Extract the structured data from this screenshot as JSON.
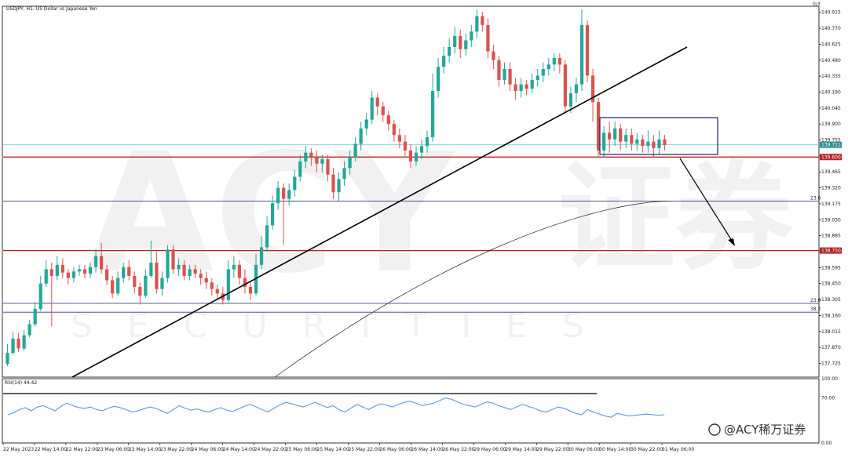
{
  "colors": {
    "background": "#ffffff",
    "bull": "#26a69a",
    "bear": "#d9534f",
    "resistance_line": "#b22222",
    "fib_line": "#3b3b7a",
    "bid_line": "#7fc8c8",
    "trendline": "#000000",
    "moving_average": "#222222",
    "rsi_line": "#4a8fd6",
    "box": "#1f1f5f",
    "grid_text": "#222222"
  },
  "header": {
    "title": "USDJPY, H1:  US Dollar vs Japanese Yen",
    "corner_badge": "0/3"
  },
  "watermark": {
    "brand": "ACY",
    "cn": "证券",
    "sub": "SECURITIES"
  },
  "footer": {
    "brand_text": "@ACY稀万证券"
  },
  "chart_data": [
    {
      "type": "candlestick",
      "symbol": "USDJPY",
      "timeframe": "H1",
      "title": "USDJPY, H1:  US Dollar vs Japanese Yen",
      "ylim": [
        137.6,
        140.97
      ],
      "y_ticks": [
        "140.915",
        "140.770",
        "140.625",
        "140.480",
        "140.335",
        "140.190",
        "140.045",
        "139.900",
        "139.755",
        "139.610",
        "139.465",
        "139.320",
        "139.175",
        "139.030",
        "138.885",
        "138.740",
        "138.595",
        "138.450",
        "138.305",
        "138.160",
        "138.015",
        "137.870",
        "137.725"
      ],
      "x_ticks": [
        "22 May 2023",
        "22 May 14:00",
        "22 May 22:00",
        "23 May 06:00",
        "23 May 14:00",
        "23 May 22:00",
        "24 May 06:00",
        "24 May 14:00",
        "24 May 22:00",
        "25 May 06:00",
        "25 May 14:00",
        "25 May 22:00",
        "26 May 06:00",
        "26 May 14:00",
        "26 May 22:00",
        "29 May 06:00",
        "29 May 14:00",
        "29 May 22:00",
        "30 May 06:00",
        "30 May 14:00",
        "30 May 22:00",
        "31 May 06:00"
      ],
      "current_price": {
        "value": 139.711,
        "label": "139.711"
      },
      "horizontal_levels": [
        {
          "value": 139.6,
          "label": "139.600",
          "kind": "resistance"
        },
        {
          "value": 138.75,
          "label": "138.750",
          "kind": "resistance"
        }
      ],
      "fib_levels": [
        {
          "value": 139.2,
          "label": "23.6"
        },
        {
          "value": 138.27,
          "label": "23.6"
        },
        {
          "value": 138.19,
          "label": "38.2"
        }
      ],
      "candles": [
        [
          137.72,
          137.82,
          137.7,
          137.9
        ],
        [
          137.82,
          137.95,
          137.8,
          138.01
        ],
        [
          137.95,
          137.86,
          137.83,
          138.0
        ],
        [
          137.86,
          137.98,
          137.84,
          138.03
        ],
        [
          137.98,
          138.08,
          137.96,
          138.12
        ],
        [
          138.08,
          138.22,
          138.06,
          138.28
        ],
        [
          138.22,
          138.45,
          138.2,
          138.52
        ],
        [
          138.45,
          138.58,
          138.42,
          138.66
        ],
        [
          138.58,
          138.52,
          138.06,
          138.64
        ],
        [
          138.52,
          138.62,
          138.48,
          138.7
        ],
        [
          138.62,
          138.55,
          138.5,
          138.68
        ],
        [
          138.55,
          138.5,
          138.44,
          138.58
        ],
        [
          138.5,
          138.56,
          138.46,
          138.6
        ],
        [
          138.56,
          138.58,
          138.52,
          138.62
        ],
        [
          138.58,
          138.54,
          138.5,
          138.62
        ],
        [
          138.54,
          138.6,
          138.5,
          138.64
        ],
        [
          138.6,
          138.7,
          138.55,
          138.76
        ],
        [
          138.7,
          138.58,
          138.54,
          138.82
        ],
        [
          138.58,
          138.48,
          138.44,
          138.62
        ],
        [
          138.48,
          138.36,
          138.32,
          138.52
        ],
        [
          138.36,
          138.5,
          138.34,
          138.56
        ],
        [
          138.5,
          138.6,
          138.46,
          138.64
        ],
        [
          138.6,
          138.52,
          138.48,
          138.66
        ],
        [
          138.52,
          138.42,
          138.36,
          138.56
        ],
        [
          138.42,
          138.34,
          138.26,
          138.46
        ],
        [
          138.34,
          138.52,
          138.32,
          138.58
        ],
        [
          138.52,
          138.64,
          138.5,
          138.84
        ],
        [
          138.64,
          138.4,
          138.36,
          138.74
        ],
        [
          138.4,
          138.5,
          138.34,
          138.56
        ],
        [
          138.5,
          138.76,
          138.46,
          138.8
        ],
        [
          138.76,
          138.58,
          138.54,
          138.8
        ],
        [
          138.58,
          138.62,
          138.52,
          138.68
        ],
        [
          138.62,
          138.52,
          138.48,
          138.66
        ],
        [
          138.52,
          138.58,
          138.48,
          138.62
        ],
        [
          138.58,
          138.54,
          138.5,
          138.62
        ],
        [
          138.54,
          138.5,
          138.44,
          138.58
        ],
        [
          138.5,
          138.46,
          138.4,
          138.56
        ],
        [
          138.46,
          138.4,
          138.34,
          138.5
        ],
        [
          138.4,
          138.36,
          138.3,
          138.44
        ],
        [
          138.36,
          138.3,
          138.26,
          138.42
        ],
        [
          138.3,
          138.58,
          138.28,
          138.66
        ],
        [
          138.58,
          138.62,
          138.5,
          138.7
        ],
        [
          138.62,
          138.5,
          138.44,
          138.66
        ],
        [
          138.5,
          138.42,
          138.36,
          138.58
        ],
        [
          138.42,
          138.36,
          138.3,
          138.46
        ],
        [
          138.36,
          138.62,
          138.34,
          138.72
        ],
        [
          138.62,
          138.78,
          138.58,
          138.88
        ],
        [
          138.78,
          138.98,
          138.74,
          139.06
        ],
        [
          138.98,
          139.18,
          138.94,
          139.25
        ],
        [
          139.18,
          139.32,
          139.12,
          139.38
        ],
        [
          139.32,
          139.22,
          138.8,
          139.36
        ],
        [
          139.22,
          139.3,
          139.16,
          139.36
        ],
        [
          139.3,
          139.42,
          139.24,
          139.48
        ],
        [
          139.42,
          139.56,
          139.38,
          139.62
        ],
        [
          139.56,
          139.64,
          139.5,
          139.7
        ],
        [
          139.64,
          139.6,
          139.52,
          139.68
        ],
        [
          139.6,
          139.54,
          139.46,
          139.66
        ],
        [
          139.54,
          139.58,
          139.46,
          139.62
        ],
        [
          139.58,
          139.44,
          139.38,
          139.62
        ],
        [
          139.44,
          139.28,
          139.22,
          139.5
        ],
        [
          139.28,
          139.4,
          139.2,
          139.46
        ],
        [
          139.4,
          139.5,
          139.34,
          139.56
        ],
        [
          139.5,
          139.6,
          139.44,
          139.66
        ],
        [
          139.6,
          139.72,
          139.56,
          139.78
        ],
        [
          139.72,
          139.86,
          139.66,
          139.92
        ],
        [
          139.86,
          139.94,
          139.8,
          140.0
        ],
        [
          139.94,
          140.14,
          139.9,
          140.2
        ],
        [
          140.14,
          140.06,
          139.98,
          140.18
        ],
        [
          140.06,
          139.98,
          139.92,
          140.1
        ],
        [
          139.98,
          139.9,
          139.84,
          140.02
        ],
        [
          139.9,
          139.8,
          139.74,
          139.94
        ],
        [
          139.8,
          139.74,
          139.68,
          139.86
        ],
        [
          139.74,
          139.66,
          139.6,
          139.8
        ],
        [
          139.66,
          139.56,
          139.5,
          139.72
        ],
        [
          139.56,
          139.64,
          139.52,
          139.7
        ],
        [
          139.64,
          139.7,
          139.58,
          139.76
        ],
        [
          139.7,
          139.78,
          139.64,
          139.84
        ],
        [
          139.78,
          140.2,
          139.74,
          140.36
        ],
        [
          140.2,
          140.42,
          140.14,
          140.5
        ],
        [
          140.42,
          140.52,
          140.36,
          140.6
        ],
        [
          140.52,
          140.6,
          140.46,
          140.68
        ],
        [
          140.6,
          140.7,
          140.54,
          140.78
        ],
        [
          140.7,
          140.58,
          140.5,
          140.76
        ],
        [
          140.58,
          140.66,
          140.52,
          140.72
        ],
        [
          140.66,
          140.74,
          140.6,
          140.8
        ],
        [
          140.74,
          140.88,
          140.68,
          140.94
        ],
        [
          140.88,
          140.8,
          140.74,
          140.92
        ],
        [
          140.8,
          140.56,
          140.5,
          140.86
        ],
        [
          140.56,
          140.48,
          140.4,
          140.62
        ],
        [
          140.48,
          140.3,
          140.24,
          140.52
        ],
        [
          140.3,
          140.4,
          140.26,
          140.46
        ],
        [
          140.4,
          140.26,
          140.2,
          140.46
        ],
        [
          140.26,
          140.2,
          140.12,
          140.32
        ],
        [
          140.2,
          140.26,
          140.14,
          140.32
        ],
        [
          140.26,
          140.22,
          140.16,
          140.3
        ],
        [
          140.22,
          140.3,
          140.18,
          140.36
        ],
        [
          140.3,
          140.34,
          140.24,
          140.4
        ],
        [
          140.34,
          140.4,
          140.28,
          140.46
        ],
        [
          140.4,
          140.44,
          140.34,
          140.5
        ],
        [
          140.44,
          140.5,
          140.38,
          140.54
        ],
        [
          140.5,
          140.44,
          140.36,
          140.54
        ],
        [
          140.44,
          140.06,
          140.0,
          140.48
        ],
        [
          140.06,
          140.18,
          140.0,
          140.24
        ],
        [
          140.18,
          140.26,
          140.1,
          140.32
        ],
        [
          140.26,
          140.8,
          140.2,
          140.94
        ],
        [
          140.8,
          140.34,
          140.28,
          140.84
        ],
        [
          140.34,
          140.1,
          139.92,
          140.4
        ],
        [
          140.1,
          139.66,
          139.6,
          140.14
        ],
        [
          139.66,
          139.82,
          139.6,
          139.88
        ],
        [
          139.82,
          139.76,
          139.64,
          139.92
        ],
        [
          139.76,
          139.86,
          139.7,
          139.92
        ],
        [
          139.86,
          139.74,
          139.66,
          139.9
        ],
        [
          139.74,
          139.8,
          139.68,
          139.86
        ],
        [
          139.8,
          139.72,
          139.66,
          139.86
        ],
        [
          139.72,
          139.76,
          139.66,
          139.82
        ],
        [
          139.76,
          139.7,
          139.64,
          139.8
        ],
        [
          139.7,
          139.74,
          139.64,
          139.84
        ],
        [
          139.74,
          139.68,
          139.6,
          139.8
        ],
        [
          139.68,
          139.76,
          139.62,
          139.84
        ],
        [
          139.76,
          139.71,
          139.66,
          139.8
        ]
      ]
    },
    {
      "type": "line",
      "title": "RSI(14) 44.42",
      "ylim": [
        0,
        100
      ],
      "y_ticks": [
        "100.00",
        "70.00",
        "0.00"
      ],
      "values": [
        44,
        47,
        52,
        55,
        50,
        56,
        58,
        54,
        50,
        57,
        62,
        58,
        55,
        54,
        56,
        52,
        50,
        54,
        57,
        55,
        52,
        48,
        50,
        53,
        56,
        54,
        50,
        46,
        52,
        58,
        54,
        51,
        53,
        50,
        48,
        52,
        55,
        51,
        49,
        53,
        57,
        60,
        56,
        52,
        48,
        54,
        59,
        63,
        61,
        58,
        56,
        60,
        63,
        59,
        55,
        58,
        52,
        48,
        54,
        60,
        56,
        52,
        57,
        61,
        59,
        56,
        60,
        63,
        65,
        62,
        58,
        60,
        62,
        66,
        70,
        68,
        64,
        60,
        58,
        56,
        60,
        64,
        62,
        58,
        55,
        52,
        56,
        60,
        57,
        54,
        50,
        48,
        52,
        56,
        54,
        50,
        46,
        44,
        52,
        48,
        45,
        42,
        40,
        46,
        44,
        42,
        43,
        44,
        45,
        44,
        43,
        44
      ],
      "divergence_line": true
    }
  ]
}
